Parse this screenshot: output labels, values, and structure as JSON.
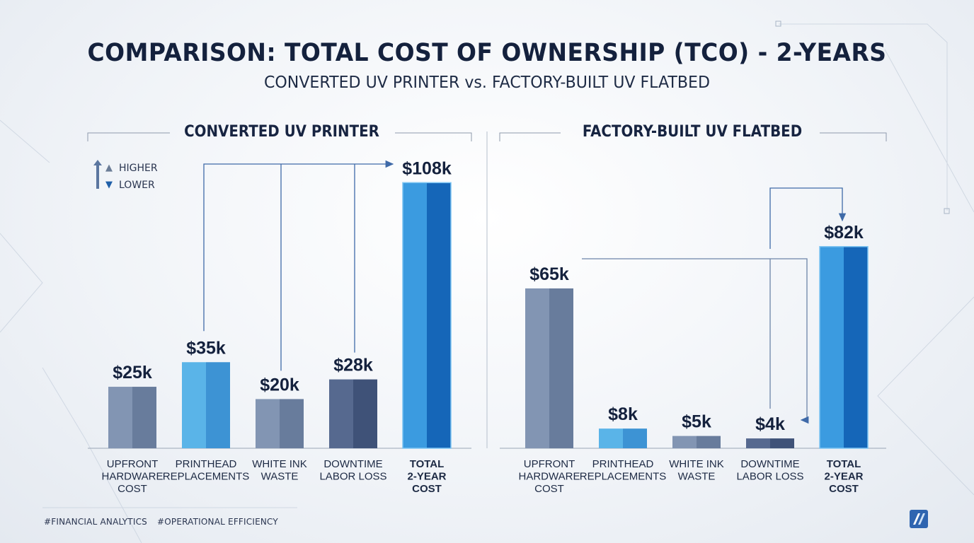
{
  "title": "COMPARISON: TOTAL COST OF OWNERSHIP (TCO) - 2-YEARS",
  "subtitle": "CONVERTED UV PRINTER vs. FACTORY-BUILT UV FLATBED",
  "legend": {
    "higher": "HIGHER",
    "lower": "LOWER"
  },
  "hashtags": [
    "#FINANCIAL ANALYTICS",
    "#OPERATIONAL EFFICIENCY"
  ],
  "colors": {
    "slate": "#7387a6",
    "light_blue": "#4aa3dc",
    "dark_slate": "#4a5d84",
    "total_blue": "#1a78cc",
    "text": "#14213d"
  },
  "chart_data": [
    {
      "type": "bar",
      "title": "CONVERTED UV PRINTER",
      "categories": [
        "UPFRONT\nHARDWARE\nCOST",
        "PRINTHEAD\nREPLACEMENTS",
        "WHITE INK\nWASTE",
        "DOWNTIME\nLABOR LOSS",
        "TOTAL\n2-YEAR\nCOST"
      ],
      "values": [
        25,
        35,
        20,
        28,
        108
      ],
      "data_labels": [
        "$25k",
        "$35k",
        "$20k",
        "$28k",
        "$108k"
      ],
      "unit": "k USD",
      "bar_colors": [
        "slate",
        "light_blue",
        "slate",
        "dark_slate",
        "total_blue"
      ],
      "highlight": "TOTAL\n2-YEAR\nCOST",
      "ylim": [
        0,
        115
      ],
      "grid": false
    },
    {
      "type": "bar",
      "title": "FACTORY-BUILT UV FLATBED",
      "categories": [
        "UPFRONT\nHARDWARE\nCOST",
        "PRINTHEAD\nREPLACEMENTS",
        "WHITE INK\nWASTE",
        "DOWNTIME\nLABOR LOSS",
        "TOTAL\n2-YEAR\nCOST"
      ],
      "values": [
        65,
        8,
        5,
        4,
        82
      ],
      "data_labels": [
        "$65k",
        "$8k",
        "$5k",
        "$4k",
        "$82k"
      ],
      "unit": "k USD",
      "bar_colors": [
        "slate",
        "light_blue",
        "slate",
        "dark_slate",
        "total_blue"
      ],
      "highlight": "TOTAL\n2-YEAR\nCOST",
      "ylim": [
        0,
        115
      ],
      "grid": false
    }
  ]
}
